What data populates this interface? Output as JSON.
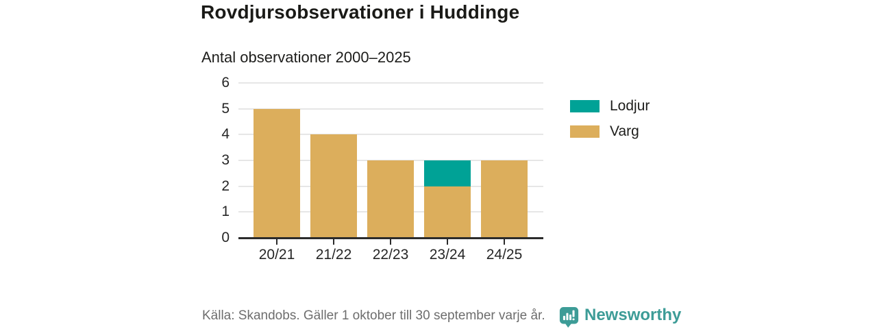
{
  "header": {
    "title": "Rovdjursobservationer i Huddinge",
    "subtitle": "Antal observationer 2000–2025"
  },
  "chart_data": {
    "type": "bar",
    "stacked": true,
    "title": "Rovdjursobservationer i Huddinge",
    "subtitle": "Antal observationer 2000–2025",
    "categories": [
      "20/21",
      "21/22",
      "22/23",
      "23/24",
      "24/25"
    ],
    "series": [
      {
        "name": "Lodjur",
        "color": "#00a296",
        "values": [
          0,
          0,
          0,
          1,
          0
        ]
      },
      {
        "name": "Varg",
        "color": "#dcae5c",
        "values": [
          5,
          4,
          3,
          2,
          3
        ]
      }
    ],
    "totals": [
      5,
      4,
      3,
      3,
      3
    ],
    "yticks": [
      0,
      1,
      2,
      3,
      4,
      5,
      6
    ],
    "ylim": [
      0,
      6
    ],
    "xlabel": "",
    "ylabel": "",
    "grid": true,
    "legend_position": "right"
  },
  "legend": {
    "items": [
      {
        "label": "Lodjur",
        "color": "#00a296"
      },
      {
        "label": "Varg",
        "color": "#dcae5c"
      }
    ]
  },
  "footer": {
    "source": "Källa: Skandobs. Gäller 1 oktober till 30 september varje år.",
    "brand": "Newsworthy",
    "brand_color": "#3d9c97"
  },
  "colors": {
    "background": "#ffffff",
    "text_dark": "#1d1d1b",
    "axis": "#2b2b2b",
    "gridline": "#e6e6e6",
    "source_text": "#6d6d6d"
  }
}
